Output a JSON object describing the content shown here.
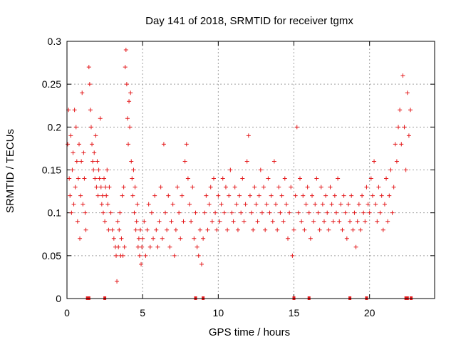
{
  "chart_data": {
    "type": "scatter",
    "title": "Day 141 of 2018, SRMTID for receiver tgmx",
    "xlabel": "GPS time / hours",
    "ylabel": "SRMTID / TECUs",
    "xlim": [
      0,
      24.3
    ],
    "ylim": [
      0,
      0.3
    ],
    "x_ticks": [
      0,
      5,
      10,
      15,
      20
    ],
    "x_tick_labels": [
      "0",
      "5",
      "10",
      "15",
      "20"
    ],
    "y_ticks": [
      0,
      0.05,
      0.1,
      0.15,
      0.2,
      0.25,
      0.3
    ],
    "y_tick_labels": [
      "0",
      "0.05",
      "0.1",
      "0.15",
      "0.2",
      "0.25",
      "0.3"
    ],
    "grid": true,
    "marker": "+",
    "series": [
      {
        "name": "SRMTID",
        "color": "#e41a1c",
        "points": [
          [
            0.05,
            0.18
          ],
          [
            0.1,
            0.22
          ],
          [
            0.15,
            0.14
          ],
          [
            0.2,
            0.12
          ],
          [
            0.25,
            0.19
          ],
          [
            0.3,
            0.1
          ],
          [
            0.35,
            0.15
          ],
          [
            0.4,
            0.17
          ],
          [
            0.45,
            0.11
          ],
          [
            0.5,
            0.22
          ],
          [
            0.55,
            0.13
          ],
          [
            0.6,
            0.2
          ],
          [
            0.65,
            0.16
          ],
          [
            0.7,
            0.09
          ],
          [
            0.75,
            0.14
          ],
          [
            0.8,
            0.18
          ],
          [
            0.85,
            0.07
          ],
          [
            0.9,
            0.12
          ],
          [
            0.95,
            0.16
          ],
          [
            1.0,
            0.24
          ],
          [
            1.05,
            0.11
          ],
          [
            1.1,
            0.17
          ],
          [
            1.15,
            0.14
          ],
          [
            1.2,
            0.1
          ],
          [
            1.25,
            0.08
          ],
          [
            1.45,
            0.27
          ],
          [
            1.5,
            0.25
          ],
          [
            1.55,
            0.22
          ],
          [
            1.6,
            0.2
          ],
          [
            1.65,
            0.18
          ],
          [
            1.7,
            0.16
          ],
          [
            1.75,
            0.15
          ],
          [
            1.8,
            0.17
          ],
          [
            1.85,
            0.14
          ],
          [
            1.9,
            0.19
          ],
          [
            1.95,
            0.13
          ],
          [
            2.0,
            0.16
          ],
          [
            2.05,
            0.12
          ],
          [
            2.1,
            0.15
          ],
          [
            2.15,
            0.14
          ],
          [
            2.2,
            0.21
          ],
          [
            2.25,
            0.13
          ],
          [
            2.3,
            0.11
          ],
          [
            2.35,
            0.12
          ],
          [
            2.4,
            0.1
          ],
          [
            2.45,
            0.14
          ],
          [
            2.5,
            0.09
          ],
          [
            2.55,
            0.13
          ],
          [
            2.6,
            0.12
          ],
          [
            2.65,
            0.15
          ],
          [
            2.7,
            0.11
          ],
          [
            2.75,
            0.08
          ],
          [
            2.8,
            0.13
          ],
          [
            2.9,
            0.1
          ],
          [
            3.0,
            0.08
          ],
          [
            3.1,
            0.07
          ],
          [
            3.2,
            0.06
          ],
          [
            3.25,
            0.05
          ],
          [
            3.3,
            0.02
          ],
          [
            3.35,
            0.09
          ],
          [
            3.4,
            0.06
          ],
          [
            3.45,
            0.08
          ],
          [
            3.5,
            0.1
          ],
          [
            3.55,
            0.05
          ],
          [
            3.6,
            0.07
          ],
          [
            3.65,
            0.12
          ],
          [
            3.7,
            0.05
          ],
          [
            3.75,
            0.13
          ],
          [
            3.8,
            0.06
          ],
          [
            3.85,
            0.27
          ],
          [
            3.9,
            0.29
          ],
          [
            3.95,
            0.25
          ],
          [
            4.0,
            0.21
          ],
          [
            4.05,
            0.18
          ],
          [
            4.1,
            0.23
          ],
          [
            4.15,
            0.2
          ],
          [
            4.2,
            0.24
          ],
          [
            4.25,
            0.16
          ],
          [
            4.3,
            0.14
          ],
          [
            4.35,
            0.12
          ],
          [
            4.4,
            0.15
          ],
          [
            4.45,
            0.1
          ],
          [
            4.5,
            0.13
          ],
          [
            4.55,
            0.08
          ],
          [
            4.6,
            0.09
          ],
          [
            4.65,
            0.11
          ],
          [
            4.7,
            0.06
          ],
          [
            4.75,
            0.07
          ],
          [
            4.8,
            0.05
          ],
          [
            4.85,
            0.08
          ],
          [
            4.9,
            0.04
          ],
          [
            4.95,
            0.06
          ],
          [
            5.0,
            0.07
          ],
          [
            5.1,
            0.09
          ],
          [
            5.2,
            0.05
          ],
          [
            5.3,
            0.08
          ],
          [
            5.4,
            0.11
          ],
          [
            5.5,
            0.06
          ],
          [
            5.6,
            0.1
          ],
          [
            5.7,
            0.07
          ],
          [
            5.8,
            0.12
          ],
          [
            5.9,
            0.08
          ],
          [
            6.0,
            0.06
          ],
          [
            6.1,
            0.09
          ],
          [
            6.2,
            0.13
          ],
          [
            6.3,
            0.07
          ],
          [
            6.4,
            0.18
          ],
          [
            6.5,
            0.1
          ],
          [
            6.6,
            0.08
          ],
          [
            6.7,
            0.12
          ],
          [
            6.8,
            0.06
          ],
          [
            6.9,
            0.09
          ],
          [
            7.0,
            0.11
          ],
          [
            7.1,
            0.05
          ],
          [
            7.2,
            0.08
          ],
          [
            7.3,
            0.13
          ],
          [
            7.4,
            0.1
          ],
          [
            7.5,
            0.07
          ],
          [
            7.6,
            0.12
          ],
          [
            7.7,
            0.09
          ],
          [
            7.8,
            0.16
          ],
          [
            7.9,
            0.18
          ],
          [
            8.0,
            0.14
          ],
          [
            8.1,
            0.11
          ],
          [
            8.2,
            0.09
          ],
          [
            8.3,
            0.13
          ],
          [
            8.4,
            0.07
          ],
          [
            8.5,
            0.1
          ],
          [
            8.6,
            0.06
          ],
          [
            8.7,
            0.05
          ],
          [
            8.8,
            0.08
          ],
          [
            8.9,
            0.04
          ],
          [
            9.0,
            0.07
          ],
          [
            9.1,
            0.1
          ],
          [
            9.2,
            0.12
          ],
          [
            9.3,
            0.08
          ],
          [
            9.4,
            0.11
          ],
          [
            9.5,
            0.13
          ],
          [
            9.6,
            0.09
          ],
          [
            9.7,
            0.14
          ],
          [
            9.8,
            0.1
          ],
          [
            9.9,
            0.08
          ],
          [
            10.0,
            0.12
          ],
          [
            10.1,
            0.09
          ],
          [
            10.2,
            0.11
          ],
          [
            10.3,
            0.14
          ],
          [
            10.4,
            0.1
          ],
          [
            10.5,
            0.13
          ],
          [
            10.6,
            0.08
          ],
          [
            10.7,
            0.12
          ],
          [
            10.8,
            0.15
          ],
          [
            10.9,
            0.1
          ],
          [
            11.0,
            0.09
          ],
          [
            11.1,
            0.13
          ],
          [
            11.2,
            0.11
          ],
          [
            11.3,
            0.08
          ],
          [
            11.4,
            0.12
          ],
          [
            11.5,
            0.1
          ],
          [
            11.6,
            0.14
          ],
          [
            11.7,
            0.09
          ],
          [
            11.8,
            0.11
          ],
          [
            11.9,
            0.16
          ],
          [
            12.0,
            0.19
          ],
          [
            12.1,
            0.12
          ],
          [
            12.2,
            0.1
          ],
          [
            12.3,
            0.08
          ],
          [
            12.4,
            0.13
          ],
          [
            12.5,
            0.11
          ],
          [
            12.6,
            0.09
          ],
          [
            12.7,
            0.12
          ],
          [
            12.8,
            0.15
          ],
          [
            12.9,
            0.1
          ],
          [
            13.0,
            0.13
          ],
          [
            13.1,
            0.08
          ],
          [
            13.2,
            0.11
          ],
          [
            13.3,
            0.14
          ],
          [
            13.4,
            0.1
          ],
          [
            13.5,
            0.12
          ],
          [
            13.6,
            0.09
          ],
          [
            13.7,
            0.16
          ],
          [
            13.8,
            0.11
          ],
          [
            13.9,
            0.08
          ],
          [
            14.0,
            0.13
          ],
          [
            14.1,
            0.1
          ],
          [
            14.2,
            0.12
          ],
          [
            14.3,
            0.09
          ],
          [
            14.4,
            0.14
          ],
          [
            14.5,
            0.11
          ],
          [
            14.6,
            0.07
          ],
          [
            14.7,
            0.1
          ],
          [
            14.8,
            0.13
          ],
          [
            14.9,
            0.05
          ],
          [
            15.0,
            0.08
          ],
          [
            15.1,
            0.12
          ],
          [
            15.2,
            0.2
          ],
          [
            15.3,
            0.1
          ],
          [
            15.4,
            0.14
          ],
          [
            15.5,
            0.09
          ],
          [
            15.6,
            0.12
          ],
          [
            15.7,
            0.08
          ],
          [
            15.8,
            0.11
          ],
          [
            15.9,
            0.13
          ],
          [
            16.0,
            0.1
          ],
          [
            16.1,
            0.07
          ],
          [
            16.2,
            0.12
          ],
          [
            16.3,
            0.09
          ],
          [
            16.4,
            0.11
          ],
          [
            16.5,
            0.14
          ],
          [
            16.6,
            0.1
          ],
          [
            16.7,
            0.08
          ],
          [
            16.8,
            0.13
          ],
          [
            16.9,
            0.11
          ],
          [
            17.0,
            0.09
          ],
          [
            17.1,
            0.12
          ],
          [
            17.2,
            0.1
          ],
          [
            17.3,
            0.08
          ],
          [
            17.4,
            0.13
          ],
          [
            17.5,
            0.11
          ],
          [
            17.6,
            0.09
          ],
          [
            17.7,
            0.12
          ],
          [
            17.8,
            0.1
          ],
          [
            17.9,
            0.14
          ],
          [
            18.0,
            0.09
          ],
          [
            18.1,
            0.11
          ],
          [
            18.2,
            0.08
          ],
          [
            18.3,
            0.12
          ],
          [
            18.4,
            0.1
          ],
          [
            18.5,
            0.07
          ],
          [
            18.6,
            0.11
          ],
          [
            18.7,
            0.09
          ],
          [
            18.8,
            0.12
          ],
          [
            18.9,
            0.08
          ],
          [
            19.0,
            0.1
          ],
          [
            19.1,
            0.06
          ],
          [
            19.2,
            0.09
          ],
          [
            19.3,
            0.11
          ],
          [
            19.4,
            0.08
          ],
          [
            19.5,
            0.12
          ],
          [
            19.6,
            0.1
          ],
          [
            19.7,
            0.09
          ],
          [
            19.8,
            0.13
          ],
          [
            19.9,
            0.11
          ],
          [
            20.0,
            0.1
          ],
          [
            20.1,
            0.14
          ],
          [
            20.2,
            0.12
          ],
          [
            20.3,
            0.16
          ],
          [
            20.4,
            0.11
          ],
          [
            20.5,
            0.09
          ],
          [
            20.6,
            0.13
          ],
          [
            20.7,
            0.1
          ],
          [
            20.8,
            0.12
          ],
          [
            20.9,
            0.08
          ],
          [
            21.0,
            0.11
          ],
          [
            21.1,
            0.14
          ],
          [
            21.2,
            0.09
          ],
          [
            21.3,
            0.12
          ],
          [
            21.4,
            0.15
          ],
          [
            21.5,
            0.1
          ],
          [
            21.6,
            0.13
          ],
          [
            21.7,
            0.18
          ],
          [
            21.8,
            0.16
          ],
          [
            21.9,
            0.2
          ],
          [
            22.0,
            0.22
          ],
          [
            22.1,
            0.18
          ],
          [
            22.2,
            0.26
          ],
          [
            22.3,
            0.2
          ],
          [
            22.4,
            0.15
          ],
          [
            22.5,
            0.24
          ],
          [
            22.6,
            0.19
          ],
          [
            22.7,
            0.22
          ]
        ]
      }
    ],
    "gap_markers": [
      1.35,
      1.45,
      2.5,
      8.5,
      9.0,
      15.0,
      16.0,
      18.7,
      19.8,
      22.4,
      22.5,
      22.75
    ]
  }
}
